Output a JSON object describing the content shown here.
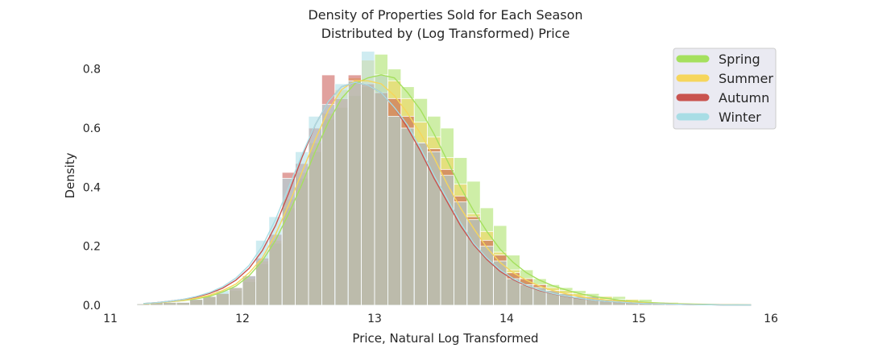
{
  "chart_data": {
    "type": "histogram",
    "title": [
      "Density of Properties Sold for Each Season",
      "Distributed by (Log Transformed) Price"
    ],
    "xlabel": "Price, Natural Log Transformed",
    "ylabel": "Density",
    "xlim": [
      11,
      16
    ],
    "ylim": [
      0,
      0.87
    ],
    "xticks": [
      11,
      12,
      13,
      14,
      15,
      16
    ],
    "yticks": [
      0.0,
      0.2,
      0.4,
      0.6,
      0.8
    ],
    "ytick_labels": [
      "0.0",
      "0.2",
      "0.4",
      "0.6",
      "0.8"
    ],
    "grid": false,
    "legend_position": "top-right",
    "bins": [
      11.25,
      11.35,
      11.45,
      11.55,
      11.65,
      11.75,
      11.85,
      11.95,
      12.05,
      12.15,
      12.25,
      12.35,
      12.45,
      12.55,
      12.65,
      12.75,
      12.85,
      12.95,
      13.05,
      13.15,
      13.25,
      13.35,
      13.45,
      13.55,
      13.65,
      13.75,
      13.85,
      13.95,
      14.05,
      14.15,
      14.25,
      14.35,
      14.45,
      14.55,
      14.65,
      14.75,
      14.85,
      14.95,
      15.05,
      15.15,
      15.25,
      15.35,
      15.45,
      15.55,
      15.65,
      15.75,
      15.85
    ],
    "bin_width": 0.1,
    "series": [
      {
        "name": "Spring",
        "color": "#a5e05e",
        "hist": [
          0.005,
          0.01,
          0.01,
          0.01,
          0.02,
          0.03,
          0.04,
          0.05,
          0.08,
          0.14,
          0.21,
          0.33,
          0.43,
          0.52,
          0.63,
          0.67,
          0.71,
          0.74,
          0.85,
          0.8,
          0.74,
          0.7,
          0.64,
          0.6,
          0.5,
          0.42,
          0.33,
          0.27,
          0.17,
          0.12,
          0.09,
          0.07,
          0.06,
          0.05,
          0.04,
          0.03,
          0.03,
          0.02,
          0.02,
          0.01,
          0.01,
          0.005,
          0.005,
          0.005,
          0.003,
          0.002,
          0.002
        ],
        "kde": [
          0.005,
          0.008,
          0.012,
          0.016,
          0.022,
          0.03,
          0.045,
          0.065,
          0.1,
          0.15,
          0.22,
          0.31,
          0.41,
          0.52,
          0.62,
          0.7,
          0.75,
          0.77,
          0.78,
          0.77,
          0.72,
          0.66,
          0.58,
          0.49,
          0.4,
          0.32,
          0.25,
          0.19,
          0.145,
          0.11,
          0.085,
          0.066,
          0.052,
          0.04,
          0.031,
          0.024,
          0.018,
          0.013,
          0.01,
          0.008,
          0.006,
          0.005,
          0.004,
          0.003,
          0.002,
          0.002,
          0.001
        ]
      },
      {
        "name": "Summer",
        "color": "#f6d65c",
        "hist": [
          0.005,
          0.01,
          0.01,
          0.01,
          0.02,
          0.03,
          0.04,
          0.06,
          0.09,
          0.15,
          0.22,
          0.36,
          0.45,
          0.55,
          0.65,
          0.73,
          0.77,
          0.83,
          0.78,
          0.76,
          0.7,
          0.62,
          0.57,
          0.5,
          0.41,
          0.31,
          0.25,
          0.18,
          0.12,
          0.09,
          0.07,
          0.06,
          0.05,
          0.04,
          0.03,
          0.03,
          0.02,
          0.02,
          0.01,
          0.01,
          0.005,
          0.005,
          0.005,
          0.003,
          0.002,
          0.002,
          0.002
        ],
        "kde": [
          0.005,
          0.008,
          0.012,
          0.017,
          0.024,
          0.034,
          0.05,
          0.072,
          0.11,
          0.16,
          0.24,
          0.34,
          0.45,
          0.56,
          0.66,
          0.73,
          0.76,
          0.76,
          0.75,
          0.71,
          0.65,
          0.58,
          0.5,
          0.41,
          0.33,
          0.26,
          0.195,
          0.145,
          0.11,
          0.085,
          0.065,
          0.05,
          0.039,
          0.03,
          0.023,
          0.018,
          0.014,
          0.011,
          0.008,
          0.006,
          0.005,
          0.004,
          0.003,
          0.002,
          0.002,
          0.001,
          0.001
        ]
      },
      {
        "name": "Autumn",
        "color": "#c9534f",
        "hist": [
          0.005,
          0.01,
          0.01,
          0.01,
          0.02,
          0.03,
          0.04,
          0.06,
          0.1,
          0.16,
          0.24,
          0.45,
          0.48,
          0.6,
          0.78,
          0.7,
          0.78,
          0.75,
          0.72,
          0.7,
          0.64,
          0.55,
          0.53,
          0.46,
          0.37,
          0.3,
          0.22,
          0.17,
          0.11,
          0.09,
          0.07,
          0.05,
          0.04,
          0.03,
          0.03,
          0.02,
          0.02,
          0.01,
          0.01,
          0.01,
          0.005,
          0.005,
          0.005,
          0.003,
          0.002,
          0.002,
          0.002
        ],
        "kde": [
          0.006,
          0.009,
          0.014,
          0.02,
          0.028,
          0.04,
          0.058,
          0.085,
          0.125,
          0.185,
          0.27,
          0.38,
          0.5,
          0.61,
          0.69,
          0.74,
          0.755,
          0.745,
          0.72,
          0.67,
          0.6,
          0.52,
          0.43,
          0.35,
          0.27,
          0.205,
          0.155,
          0.115,
          0.087,
          0.066,
          0.05,
          0.039,
          0.03,
          0.023,
          0.018,
          0.014,
          0.011,
          0.008,
          0.006,
          0.005,
          0.004,
          0.003,
          0.002,
          0.002,
          0.001,
          0.001,
          0.001
        ]
      },
      {
        "name": "Winter",
        "color": "#a8dde5",
        "hist": [
          0.005,
          0.01,
          0.01,
          0.01,
          0.02,
          0.03,
          0.05,
          0.06,
          0.1,
          0.22,
          0.3,
          0.43,
          0.52,
          0.64,
          0.68,
          0.75,
          0.76,
          0.86,
          0.78,
          0.64,
          0.6,
          0.55,
          0.52,
          0.44,
          0.35,
          0.29,
          0.2,
          0.15,
          0.09,
          0.07,
          0.06,
          0.05,
          0.04,
          0.03,
          0.03,
          0.02,
          0.02,
          0.01,
          0.01,
          0.005,
          0.005,
          0.005,
          0.003,
          0.002,
          0.002,
          0.002,
          0.002
        ],
        "kde": [
          0.006,
          0.009,
          0.014,
          0.02,
          0.03,
          0.043,
          0.063,
          0.092,
          0.135,
          0.2,
          0.29,
          0.4,
          0.51,
          0.61,
          0.69,
          0.74,
          0.755,
          0.745,
          0.72,
          0.67,
          0.61,
          0.53,
          0.44,
          0.36,
          0.28,
          0.21,
          0.16,
          0.12,
          0.09,
          0.068,
          0.052,
          0.04,
          0.031,
          0.024,
          0.018,
          0.014,
          0.011,
          0.008,
          0.006,
          0.005,
          0.004,
          0.003,
          0.002,
          0.002,
          0.001,
          0.001,
          0.001
        ]
      }
    ]
  }
}
